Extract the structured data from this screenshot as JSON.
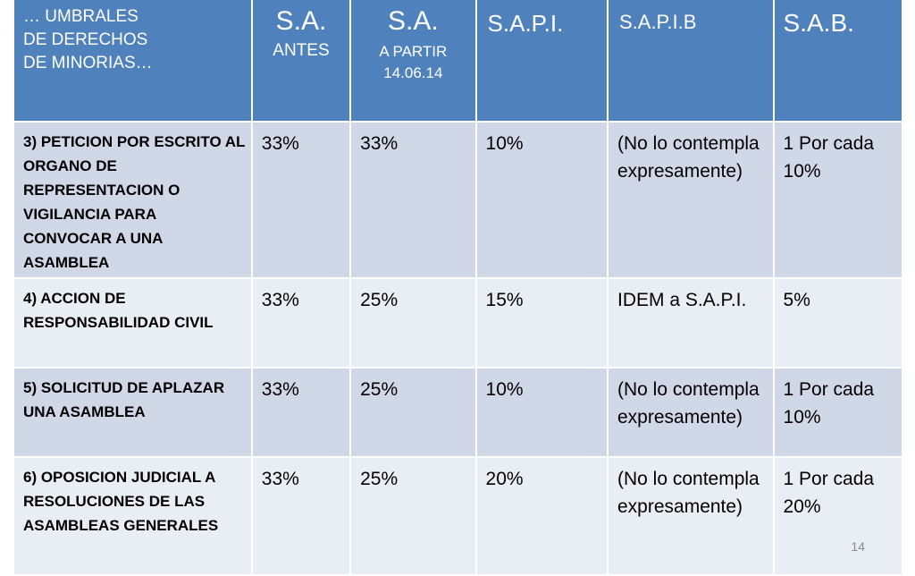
{
  "header": {
    "criteria_lines": [
      "… UMBRALES",
      "DE DERECHOS",
      "DE MINORIAS…"
    ],
    "sa_before_title": "S.A.",
    "sa_before_sub": "ANTES",
    "sa_after_title": "S.A.",
    "sa_after_sub1": "A PARTIR",
    "sa_after_sub2": "14.06.14",
    "sapi": "S.A.P.I.",
    "sapib": "S.A.P.I.B",
    "sab": "S.A.B."
  },
  "rows": [
    {
      "criterion": "3) PETICION POR ESCRITO AL ORGANO DE REPRESENTACION O VIGILANCIA PARA CONVOCAR A UNA ASAMBLEA",
      "sa_before": "33%",
      "sa_after": "33%",
      "sapi": "10%",
      "sapib": "(No lo contempla expresamente)",
      "sab": "1 Por cada 10%"
    },
    {
      "criterion": "4) ACCION DE RESPONSABILIDAD CIVIL",
      "sa_before": "33%",
      "sa_after": "25%",
      "sapi": "15%",
      "sapib": "IDEM a S.A.P.I.",
      "sab": "5%"
    },
    {
      "criterion": "5) SOLICITUD DE APLAZAR UNA ASAMBLEA",
      "sa_before": "33%",
      "sa_after": "25%",
      "sapi": "10%",
      "sapib": "(No lo contempla expresamente)",
      "sab": "1 Por cada 10%"
    },
    {
      "criterion": "6) OPOSICION JUDICIAL A RESOLUCIONES DE LAS ASAMBLEAS GENERALES",
      "sa_before": "33%",
      "sa_after": "25%",
      "sapi": "20%",
      "sapib": "(No lo contempla expresamente)",
      "sab": "1 Por cada 20%"
    }
  ],
  "page_number": "14",
  "colors": {
    "header_bg": "#4f81bd",
    "row_dark": "#d0d8e8",
    "row_light": "#e9edf4"
  }
}
